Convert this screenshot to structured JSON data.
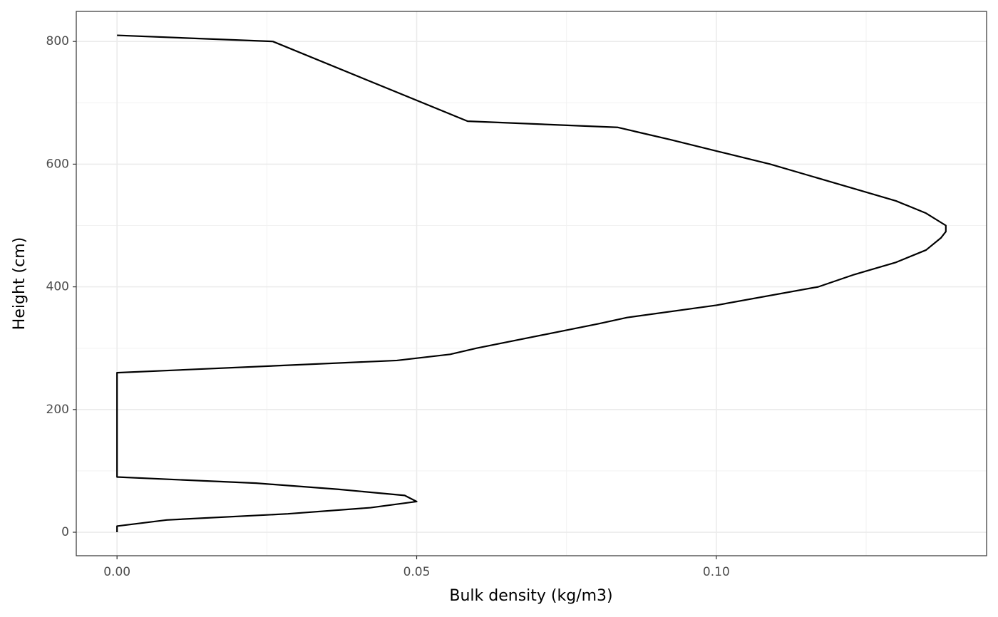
{
  "chart_data": {
    "type": "line",
    "xlabel": "Bulk density (kg/m3)",
    "ylabel": "Height (cm)",
    "color": "#000000",
    "grid": true,
    "x": [
      0,
      0,
      0.0083,
      0.0285,
      0.0423,
      0.05,
      0.048,
      0.0369,
      0.0232,
      0,
      0,
      0.0467,
      0.0556,
      0.06,
      0.0804,
      0.0851,
      0.1,
      0.117,
      0.123,
      0.13,
      0.135,
      0.1375,
      0.1383,
      0.1383,
      0.135,
      0.13,
      0.123,
      0.116,
      0.109,
      0.1006,
      0.0923,
      0.0835,
      0.0585,
      0.026,
      0
    ],
    "values": [
      0,
      10,
      20,
      30,
      40,
      50,
      60,
      70,
      80,
      90,
      260,
      280,
      290,
      300,
      340,
      350,
      370,
      400,
      420,
      440,
      460,
      480,
      490,
      500,
      520,
      540,
      560,
      580,
      600,
      620,
      640,
      660,
      670,
      800,
      810
    ],
    "xlim": [
      -0.0068,
      0.1451
    ],
    "ylim": [
      -38.3,
      849
    ],
    "xticks": [
      {
        "value": 0,
        "label": "0.00"
      },
      {
        "value": 0.05,
        "label": "0.05"
      },
      {
        "value": 0.1,
        "label": "0.10"
      }
    ],
    "yticks": [
      0,
      200,
      400,
      600,
      800
    ]
  }
}
